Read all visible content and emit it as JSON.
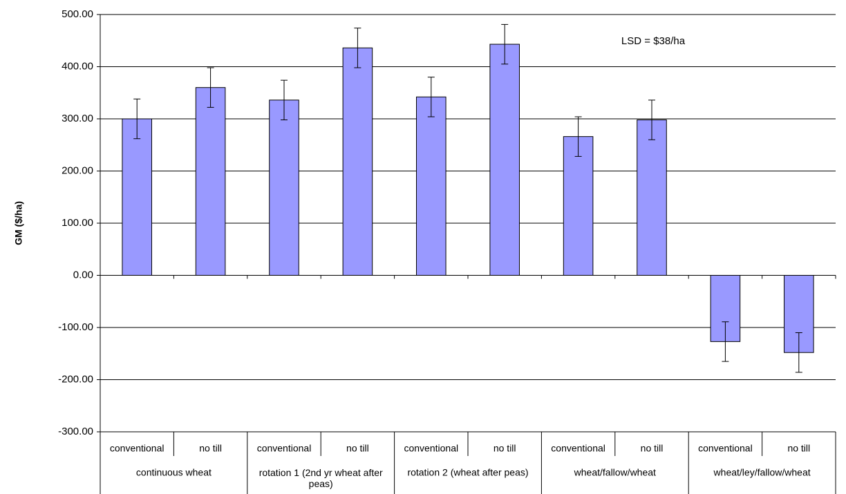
{
  "chart_data": {
    "type": "bar",
    "y_label": "GM ($/ha)",
    "annotation": "LSD = $38/ha",
    "categories": [
      "conventional",
      "no till",
      "conventional",
      "no till",
      "conventional",
      "no till",
      "conventional",
      "no till",
      "conventional",
      "no till"
    ],
    "groups": [
      "continuous wheat",
      "rotation 1 (2nd yr wheat after peas)",
      "rotation 2 (wheat after peas)",
      "wheat/fallow/wheat",
      "wheat/ley/fallow/wheat"
    ],
    "values": [
      300,
      360,
      336,
      436,
      342,
      443,
      266,
      298,
      -127,
      -148
    ],
    "errors": [
      38,
      38,
      38,
      38,
      38,
      38,
      38,
      38,
      38,
      38
    ],
    "color": "#9999ff",
    "ylim": [
      -300,
      500
    ],
    "yticks": [
      {
        "value": -300,
        "label": "-300.00"
      },
      {
        "value": -200,
        "label": "-200.00"
      },
      {
        "value": -100,
        "label": "-100.00"
      },
      {
        "value": 0,
        "label": "0.00"
      },
      {
        "value": 100,
        "label": "100.00"
      },
      {
        "value": 200,
        "label": "200.00"
      },
      {
        "value": 300,
        "label": "300.00"
      },
      {
        "value": 400,
        "label": "400.00"
      },
      {
        "value": 500,
        "label": "500.00"
      }
    ],
    "grid": true
  }
}
